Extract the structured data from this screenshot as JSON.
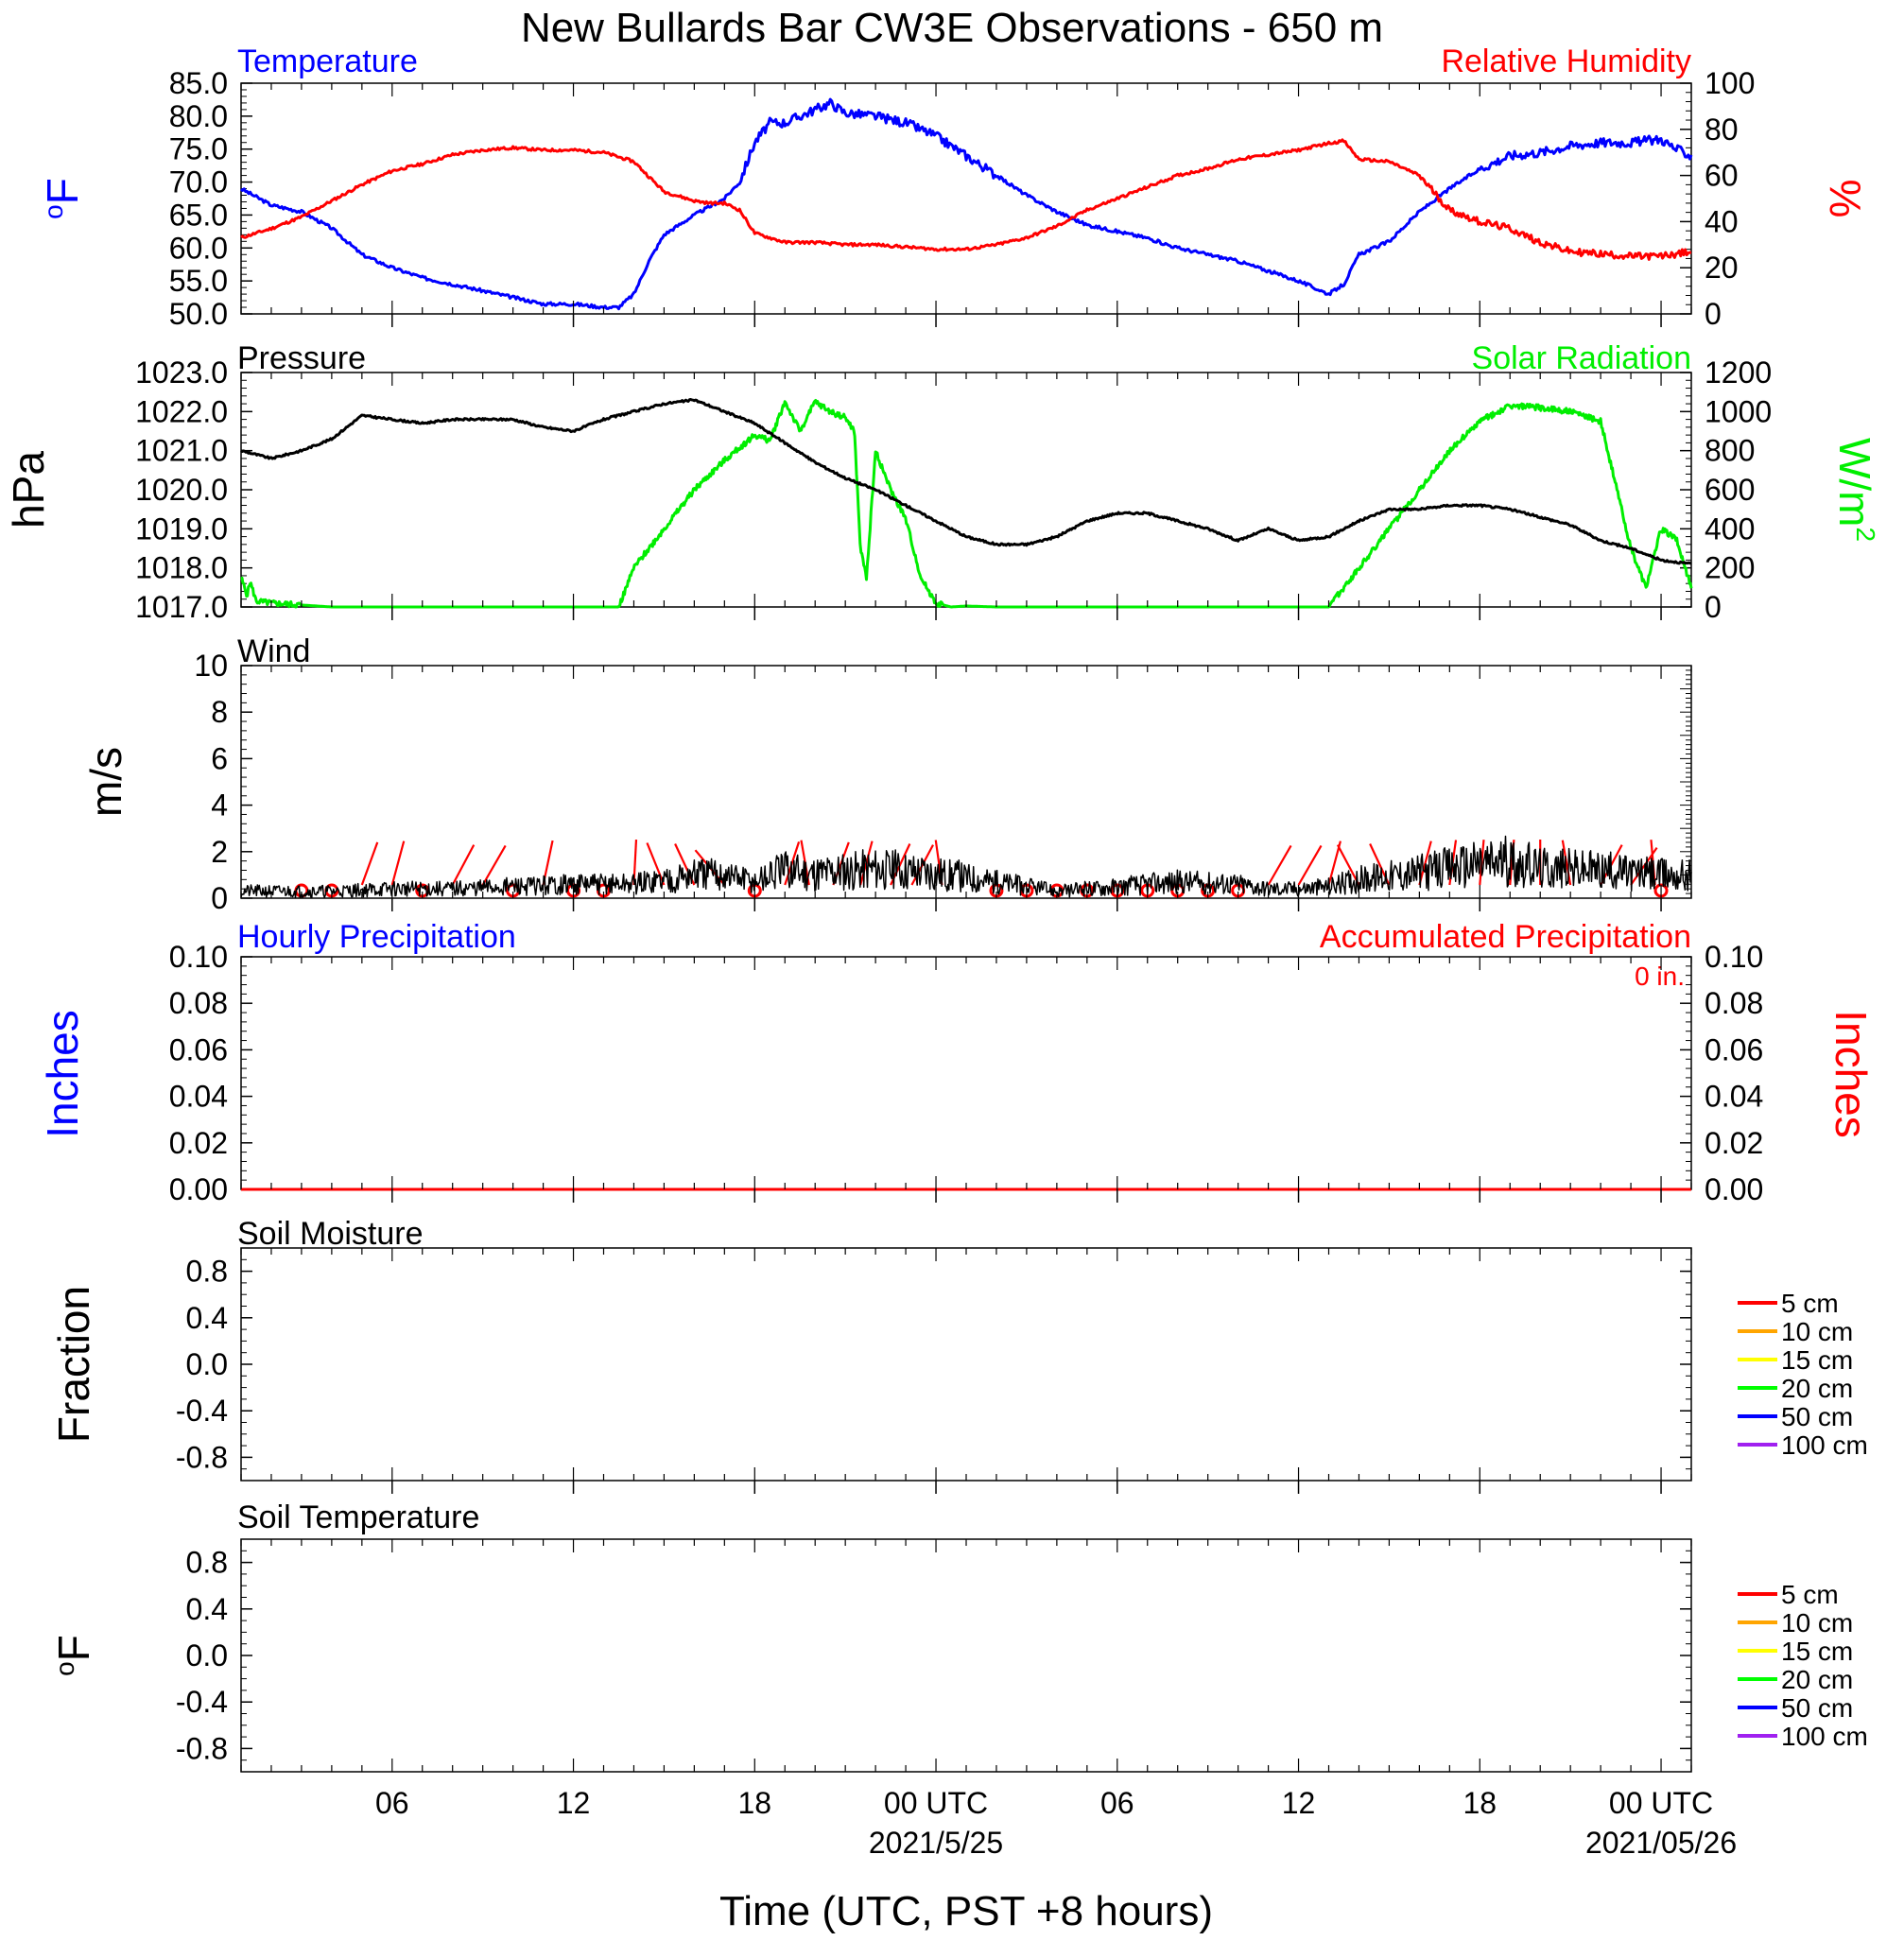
{
  "title": "New Bullards Bar CW3E Observations - 650 m",
  "colors": {
    "temp": "#0000ff",
    "rh": "#ff0000",
    "pressure": "#000000",
    "solar": "#00ee00",
    "wind": "#000000",
    "barb": "#ff0000",
    "hourly": "#0000ff",
    "accum": "#ff0000"
  },
  "x_axis": {
    "label": "Time (UTC, PST +8 hours)",
    "ticks": [
      "06",
      "12",
      "18",
      "00 UTC",
      "06",
      "12",
      "18",
      "00 UTC"
    ],
    "tick_hours": [
      6,
      12,
      18,
      24,
      30,
      36,
      42,
      48
    ],
    "dates": [
      {
        "at_hour": 24,
        "text": "2021/5/25"
      },
      {
        "at_hour": 48,
        "text": "2021/05/26"
      }
    ],
    "range_hours": [
      1,
      49
    ]
  },
  "panels": {
    "temp_rh": {
      "left_title": "Temperature",
      "right_title": "Relative Humidity",
      "left_unit": "oF",
      "right_unit": "%",
      "left_ticks": [
        "85.0",
        "80.0",
        "75.0",
        "70.0",
        "65.0",
        "60.0",
        "55.0",
        "50.0"
      ],
      "right_ticks": [
        "100",
        "80",
        "60",
        "40",
        "20",
        "0"
      ]
    },
    "pressure_solar": {
      "left_title": "Pressure",
      "right_title": "Solar Radiation",
      "left_unit": "hPa",
      "right_unit": "W/m2",
      "left_ticks": [
        "1023.0",
        "1022.0",
        "1021.0",
        "1020.0",
        "1019.0",
        "1018.0",
        "1017.0"
      ],
      "right_ticks": [
        "1200",
        "1000",
        "800",
        "600",
        "400",
        "200",
        "0"
      ]
    },
    "wind": {
      "left_title": "Wind",
      "left_unit": "m/s",
      "left_ticks": [
        "10",
        "8",
        "6",
        "4",
        "2",
        "0"
      ]
    },
    "precip": {
      "left_title": "Hourly Precipitation",
      "right_title": "Accumulated Precipitation",
      "total": "0 in.",
      "left_unit": "Inches",
      "right_unit": "Inches",
      "left_ticks": [
        "0.10",
        "0.08",
        "0.06",
        "0.04",
        "0.02",
        "0.00"
      ],
      "right_ticks": [
        "0.10",
        "0.08",
        "0.06",
        "0.04",
        "0.02",
        "0.00"
      ]
    },
    "soil_moisture": {
      "left_title": "Soil Moisture",
      "left_unit": "Fraction",
      "left_ticks": [
        "0.8",
        "0.4",
        "0.0",
        "-0.4",
        "-0.8"
      ],
      "legend": [
        "5 cm",
        "10 cm",
        "15 cm",
        "20 cm",
        "50 cm",
        "100 cm"
      ]
    },
    "soil_temp": {
      "left_title": "Soil Temperature",
      "left_unit": "oF",
      "left_ticks": [
        "0.8",
        "0.4",
        "0.0",
        "-0.4",
        "-0.8"
      ],
      "legend": [
        "5 cm",
        "10 cm",
        "15 cm",
        "20 cm",
        "50 cm",
        "100 cm"
      ]
    }
  },
  "legend_colors": [
    "#ff0000",
    "#ffa500",
    "#ffff00",
    "#00ff00",
    "#0000ff",
    "#a020f0"
  ],
  "chart_data": [
    {
      "type": "line",
      "panel": "temp_rh",
      "x_unit": "hours since 2021-05-24 00 UTC",
      "series": [
        {
          "name": "Temperature",
          "axis": "left",
          "unit": "°F",
          "ylim": [
            50,
            85
          ],
          "x": [
            1,
            2,
            3,
            4,
            5,
            6,
            7,
            8,
            9,
            10,
            11,
            12,
            13,
            13.5,
            14,
            14.5,
            15,
            16,
            17,
            17.5,
            18,
            18.5,
            19,
            20,
            20.5,
            21,
            22,
            23,
            24,
            25,
            26,
            27,
            28,
            29,
            30,
            31,
            32,
            33,
            34,
            35,
            36,
            36.5,
            37,
            37.5,
            38,
            39,
            40,
            41,
            42,
            43,
            44,
            45,
            46,
            47,
            48,
            48.5,
            49
          ],
          "y": [
            69,
            66.5,
            65.5,
            63,
            59,
            57,
            55.5,
            54.5,
            53.5,
            52.5,
            51.5,
            51.5,
            51,
            51,
            53,
            58,
            62,
            65,
            67.5,
            70,
            76,
            79,
            79,
            81,
            82,
            80.5,
            80,
            79,
            77,
            74,
            71,
            68,
            65.5,
            63.5,
            62.5,
            61.5,
            60,
            59,
            58,
            56.5,
            55,
            54,
            53,
            54.5,
            59,
            61,
            65.5,
            69,
            72,
            74,
            74.5,
            75.5,
            76,
            76,
            76.5,
            75,
            74
          ]
        },
        {
          "name": "Relative Humidity",
          "axis": "right",
          "unit": "%",
          "ylim": [
            0,
            100
          ],
          "x": [
            1,
            2,
            3,
            4,
            5,
            6,
            7,
            8,
            9,
            10,
            11,
            12,
            13,
            14,
            15,
            16,
            16.5,
            17,
            17.5,
            18,
            19,
            20,
            21,
            22,
            23,
            24,
            25,
            26,
            27,
            28,
            29,
            30,
            31,
            32,
            33,
            34,
            35,
            36,
            37,
            37.5,
            38,
            39,
            40,
            41,
            42,
            43,
            44,
            45,
            46,
            47,
            48,
            49
          ],
          "y": [
            33,
            37,
            42,
            49,
            56,
            62,
            65,
            69,
            71,
            72,
            71,
            71,
            70,
            66,
            53,
            49,
            48,
            48,
            45,
            35,
            31,
            31,
            30,
            30,
            29,
            28,
            28,
            30,
            33,
            38,
            45,
            50,
            55,
            60,
            63,
            67,
            69,
            71,
            74,
            75,
            67,
            66,
            60,
            45,
            40,
            37,
            31,
            27,
            26,
            25,
            25,
            27
          ]
        }
      ]
    },
    {
      "type": "line",
      "panel": "pressure_solar",
      "x_unit": "hours since 2021-05-24 00 UTC",
      "series": [
        {
          "name": "Pressure",
          "axis": "left",
          "unit": "hPa",
          "ylim": [
            1017,
            1023
          ],
          "x": [
            1,
            2,
            3,
            4,
            5,
            6,
            7,
            8,
            9,
            10,
            11,
            12,
            13,
            14,
            15,
            16,
            17,
            18,
            19,
            20,
            21,
            22,
            23,
            24,
            25,
            26,
            27,
            28,
            29,
            30,
            31,
            32,
            33,
            34,
            35,
            36,
            37,
            38,
            39,
            40,
            41,
            42,
            43,
            44,
            45,
            46,
            47,
            48,
            49
          ],
          "y": [
            1021,
            1020.8,
            1021,
            1021.3,
            1021.9,
            1021.8,
            1021.7,
            1021.8,
            1021.8,
            1021.8,
            1021.6,
            1021.5,
            1021.8,
            1022,
            1022.2,
            1022.3,
            1022,
            1021.7,
            1021.2,
            1020.7,
            1020.3,
            1020,
            1019.6,
            1019.2,
            1018.8,
            1018.6,
            1018.6,
            1018.8,
            1019.2,
            1019.4,
            1019.4,
            1019.2,
            1019.0,
            1018.7,
            1019,
            1018.7,
            1018.8,
            1019.2,
            1019.5,
            1019.5,
            1019.6,
            1019.6,
            1019.5,
            1019.3,
            1019.1,
            1018.7,
            1018.5,
            1018.2,
            1018.1
          ]
        },
        {
          "name": "Solar Radiation",
          "axis": "right",
          "unit": "W/m2",
          "ylim": [
            0,
            1200
          ],
          "x": [
            1,
            1.2,
            1.3,
            1.5,
            2,
            4,
            6,
            8,
            10,
            12,
            13,
            13.5,
            14,
            15,
            16,
            17,
            18,
            18.5,
            19,
            19.5,
            20,
            20.5,
            21,
            21.3,
            21.5,
            21.7,
            22,
            22.5,
            23,
            23.5,
            24,
            24.5,
            25,
            26,
            27,
            28,
            30,
            32,
            34,
            36,
            37,
            38,
            39,
            40,
            41,
            42,
            43,
            44,
            45,
            46,
            47,
            47.5,
            48,
            48.5,
            49
          ],
          "y": [
            150,
            60,
            130,
            30,
            20,
            0,
            0,
            0,
            0,
            0,
            0,
            0,
            200,
            400,
            600,
            750,
            880,
            850,
            1050,
            900,
            1050,
            1000,
            970,
            900,
            300,
            150,
            800,
            600,
            450,
            150,
            20,
            0,
            5,
            0,
            0,
            0,
            0,
            0,
            0,
            0,
            0,
            200,
            400,
            600,
            800,
            950,
            1030,
            1020,
            1000,
            950,
            300,
            100,
            400,
            350,
            100
          ]
        },
        {
          "name": "Wind",
          "panel": "wind",
          "unit": "m/s",
          "ylim": [
            0,
            10
          ],
          "x": [
            1,
            2,
            4,
            6,
            8,
            10,
            12,
            14,
            16,
            17,
            18,
            19,
            20,
            22,
            24,
            26,
            28,
            30,
            32,
            34,
            35,
            36,
            37,
            38,
            40,
            41,
            42,
            43,
            44,
            46,
            48,
            49
          ],
          "y": [
            0.3,
            0.3,
            0.3,
            0.4,
            0.4,
            0.5,
            0.6,
            0.6,
            1,
            1,
            0.7,
            1.2,
            1.1,
            1.3,
            1.1,
            0.7,
            0.3,
            0.5,
            0.7,
            0.6,
            0.4,
            0.4,
            0.5,
            0.8,
            1.1,
            1.3,
            1.5,
            1.6,
            1.3,
            1.2,
            1,
            1
          ]
        }
      ]
    },
    {
      "type": "line",
      "panel": "precip",
      "series": [
        {
          "name": "Hourly Precipitation",
          "axis": "left",
          "unit": "in",
          "ylim": [
            0,
            0.1
          ],
          "x": [
            1,
            49
          ],
          "y": [
            0,
            0
          ]
        },
        {
          "name": "Accumulated Precipitation",
          "axis": "right",
          "unit": "in",
          "ylim": [
            0,
            0.1
          ],
          "x": [
            1,
            49
          ],
          "y": [
            0,
            0
          ]
        }
      ]
    }
  ]
}
